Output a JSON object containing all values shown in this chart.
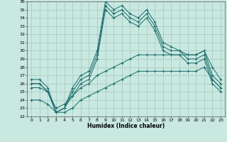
{
  "title": "",
  "xlabel": "Humidex (Indice chaleur)",
  "ylabel": "",
  "xlim": [
    -0.5,
    23.5
  ],
  "ylim": [
    22,
    36
  ],
  "yticks": [
    22,
    23,
    24,
    25,
    26,
    27,
    28,
    29,
    30,
    31,
    32,
    33,
    34,
    35,
    36
  ],
  "xticks": [
    0,
    1,
    2,
    3,
    4,
    5,
    6,
    7,
    8,
    9,
    10,
    11,
    12,
    13,
    14,
    15,
    16,
    17,
    18,
    19,
    20,
    21,
    22,
    23
  ],
  "bg_color": "#c8e8e0",
  "grid_color": "#9cbfba",
  "line_color": "#1a6b6b",
  "series": [
    [
      26.5,
      26.5,
      25.5,
      22.5,
      23.0,
      25.5,
      27.0,
      27.5,
      30.0,
      36.0,
      35.0,
      35.5,
      34.5,
      34.0,
      35.0,
      33.5,
      31.0,
      30.5,
      30.0,
      29.5,
      29.5,
      30.0,
      27.0,
      26.0
    ],
    [
      26.0,
      26.0,
      25.0,
      22.5,
      23.0,
      25.0,
      26.5,
      27.0,
      29.5,
      35.5,
      34.5,
      35.0,
      34.0,
      33.5,
      34.5,
      33.0,
      30.5,
      30.0,
      30.0,
      29.0,
      29.0,
      29.5,
      26.5,
      25.5
    ],
    [
      26.0,
      26.0,
      25.0,
      22.5,
      23.0,
      24.5,
      26.0,
      26.5,
      29.0,
      35.0,
      34.0,
      34.5,
      33.5,
      33.0,
      34.0,
      32.5,
      30.0,
      29.5,
      29.5,
      28.5,
      28.5,
      29.0,
      26.0,
      25.0
    ],
    [
      25.5,
      25.5,
      25.0,
      23.0,
      23.5,
      24.5,
      25.5,
      26.0,
      27.0,
      27.5,
      28.0,
      28.5,
      29.0,
      29.5,
      29.5,
      29.5,
      29.5,
      29.5,
      29.5,
      29.5,
      29.5,
      30.0,
      28.0,
      26.5
    ],
    [
      24.0,
      24.0,
      23.5,
      22.5,
      22.5,
      23.0,
      24.0,
      24.5,
      25.0,
      25.5,
      26.0,
      26.5,
      27.0,
      27.5,
      27.5,
      27.5,
      27.5,
      27.5,
      27.5,
      27.5,
      27.5,
      28.0,
      26.5,
      25.5
    ]
  ],
  "figsize": [
    3.2,
    2.0
  ],
  "dpi": 100
}
